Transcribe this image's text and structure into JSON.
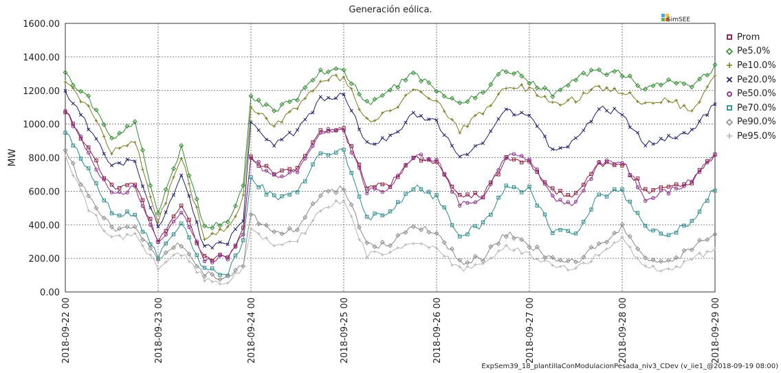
{
  "title": "Generación eólica.",
  "footer": "ExpSem39_18_plantillaConModulacionPesada_niv3_CDev (v_iie1_@2018-09-19 08:00)",
  "logo_text": "SimSEE",
  "chart_data": {
    "type": "line",
    "title": "Generación eólica.",
    "xlabel": "",
    "ylabel": "MW",
    "ylim": [
      0,
      1600
    ],
    "yticks": [
      "0.00",
      "200.00",
      "400.00",
      "600.00",
      "800.00",
      "1000.00",
      "1200.00",
      "1400.00",
      "1600.00"
    ],
    "xticks": [
      "2018-09-22 00",
      "2018-09-23 00",
      "2018-09-24 00",
      "2018-09-25 00",
      "2018-09-26 00",
      "2018-09-27 00",
      "2018-09-28 00",
      "2018-09-29 00"
    ],
    "x_range_hours": [
      0,
      168
    ],
    "grid": true,
    "legend_position": "right",
    "series": [
      {
        "name": "Prom",
        "color": "#8B1A3A",
        "marker": "square",
        "points": [
          [
            0,
            1090
          ],
          [
            6,
            850
          ],
          [
            12,
            620
          ],
          [
            18,
            650
          ],
          [
            24,
            300
          ],
          [
            30,
            520
          ],
          [
            36,
            200
          ],
          [
            42,
            210
          ],
          [
            46,
            380
          ],
          [
            48,
            800
          ],
          [
            54,
            700
          ],
          [
            60,
            730
          ],
          [
            66,
            950
          ],
          [
            72,
            960
          ],
          [
            78,
            630
          ],
          [
            84,
            640
          ],
          [
            90,
            800
          ],
          [
            96,
            780
          ],
          [
            102,
            560
          ],
          [
            108,
            580
          ],
          [
            114,
            790
          ],
          [
            120,
            780
          ],
          [
            126,
            600
          ],
          [
            132,
            570
          ],
          [
            138,
            760
          ],
          [
            144,
            770
          ],
          [
            150,
            600
          ],
          [
            156,
            610
          ],
          [
            162,
            660
          ],
          [
            168,
            820
          ]
        ]
      },
      {
        "name": "Pe5.0%",
        "color": "#2E8B2E",
        "marker": "diamond",
        "points": [
          [
            0,
            1290
          ],
          [
            6,
            1150
          ],
          [
            12,
            920
          ],
          [
            18,
            1000
          ],
          [
            24,
            480
          ],
          [
            30,
            860
          ],
          [
            36,
            380
          ],
          [
            42,
            420
          ],
          [
            46,
            620
          ],
          [
            48,
            1150
          ],
          [
            54,
            1080
          ],
          [
            60,
            1160
          ],
          [
            66,
            1310
          ],
          [
            72,
            1320
          ],
          [
            78,
            1120
          ],
          [
            84,
            1200
          ],
          [
            90,
            1300
          ],
          [
            96,
            1200
          ],
          [
            102,
            1120
          ],
          [
            108,
            1190
          ],
          [
            114,
            1330
          ],
          [
            120,
            1260
          ],
          [
            126,
            1180
          ],
          [
            132,
            1270
          ],
          [
            138,
            1320
          ],
          [
            144,
            1300
          ],
          [
            150,
            1210
          ],
          [
            156,
            1270
          ],
          [
            162,
            1240
          ],
          [
            168,
            1340
          ]
        ]
      },
      {
        "name": "Pe10.0%",
        "color": "#7A7A1E",
        "marker": "plus",
        "points": [
          [
            0,
            1250
          ],
          [
            6,
            1100
          ],
          [
            12,
            840
          ],
          [
            18,
            900
          ],
          [
            24,
            420
          ],
          [
            30,
            800
          ],
          [
            36,
            330
          ],
          [
            42,
            370
          ],
          [
            46,
            560
          ],
          [
            48,
            1100
          ],
          [
            54,
            990
          ],
          [
            60,
            1100
          ],
          [
            66,
            1260
          ],
          [
            72,
            1280
          ],
          [
            78,
            1020
          ],
          [
            84,
            1080
          ],
          [
            90,
            1200
          ],
          [
            96,
            1150
          ],
          [
            102,
            960
          ],
          [
            108,
            1070
          ],
          [
            114,
            1230
          ],
          [
            120,
            1210
          ],
          [
            126,
            1120
          ],
          [
            132,
            1150
          ],
          [
            138,
            1220
          ],
          [
            144,
            1200
          ],
          [
            150,
            1120
          ],
          [
            156,
            1150
          ],
          [
            162,
            1070
          ],
          [
            168,
            1280
          ]
        ]
      },
      {
        "name": "Pe20.0%",
        "color": "#1E1E6A",
        "marker": "x",
        "points": [
          [
            0,
            1200
          ],
          [
            6,
            980
          ],
          [
            12,
            750
          ],
          [
            18,
            780
          ],
          [
            24,
            380
          ],
          [
            30,
            700
          ],
          [
            36,
            260
          ],
          [
            42,
            290
          ],
          [
            46,
            440
          ],
          [
            48,
            1000
          ],
          [
            54,
            880
          ],
          [
            60,
            960
          ],
          [
            66,
            1150
          ],
          [
            72,
            1180
          ],
          [
            78,
            880
          ],
          [
            84,
            920
          ],
          [
            90,
            1060
          ],
          [
            96,
            1020
          ],
          [
            102,
            790
          ],
          [
            108,
            880
          ],
          [
            114,
            1080
          ],
          [
            120,
            1060
          ],
          [
            126,
            850
          ],
          [
            132,
            900
          ],
          [
            138,
            1100
          ],
          [
            144,
            1060
          ],
          [
            150,
            880
          ],
          [
            156,
            920
          ],
          [
            162,
            960
          ],
          [
            168,
            1120
          ]
        ]
      },
      {
        "name": "Pe50.0%",
        "color": "#8B2A8B",
        "marker": "circle",
        "points": [
          [
            0,
            1080
          ],
          [
            6,
            830
          ],
          [
            12,
            580
          ],
          [
            18,
            620
          ],
          [
            24,
            290
          ],
          [
            30,
            490
          ],
          [
            36,
            190
          ],
          [
            42,
            200
          ],
          [
            46,
            360
          ],
          [
            48,
            790
          ],
          [
            54,
            690
          ],
          [
            60,
            720
          ],
          [
            66,
            960
          ],
          [
            72,
            970
          ],
          [
            78,
            600
          ],
          [
            84,
            620
          ],
          [
            90,
            810
          ],
          [
            96,
            790
          ],
          [
            102,
            520
          ],
          [
            108,
            560
          ],
          [
            114,
            810
          ],
          [
            120,
            790
          ],
          [
            126,
            560
          ],
          [
            132,
            520
          ],
          [
            138,
            770
          ],
          [
            144,
            780
          ],
          [
            150,
            560
          ],
          [
            156,
            600
          ],
          [
            162,
            660
          ],
          [
            168,
            840
          ]
        ]
      },
      {
        "name": "Pe70.0%",
        "color": "#2A8A8A",
        "marker": "square",
        "points": [
          [
            0,
            960
          ],
          [
            6,
            720
          ],
          [
            12,
            480
          ],
          [
            18,
            460
          ],
          [
            24,
            210
          ],
          [
            30,
            420
          ],
          [
            36,
            130
          ],
          [
            42,
            110
          ],
          [
            46,
            290
          ],
          [
            48,
            680
          ],
          [
            54,
            560
          ],
          [
            60,
            590
          ],
          [
            66,
            830
          ],
          [
            72,
            840
          ],
          [
            78,
            440
          ],
          [
            84,
            470
          ],
          [
            90,
            630
          ],
          [
            96,
            560
          ],
          [
            102,
            340
          ],
          [
            108,
            400
          ],
          [
            114,
            620
          ],
          [
            120,
            610
          ],
          [
            126,
            370
          ],
          [
            132,
            350
          ],
          [
            138,
            580
          ],
          [
            144,
            600
          ],
          [
            150,
            380
          ],
          [
            156,
            340
          ],
          [
            162,
            420
          ],
          [
            168,
            620
          ]
        ]
      },
      {
        "name": "Pe90.0%",
        "color": "#8A8A8A",
        "marker": "diamond",
        "points": [
          [
            0,
            850
          ],
          [
            6,
            560
          ],
          [
            12,
            380
          ],
          [
            18,
            380
          ],
          [
            24,
            190
          ],
          [
            30,
            290
          ],
          [
            36,
            110
          ],
          [
            42,
            80
          ],
          [
            46,
            170
          ],
          [
            48,
            460
          ],
          [
            54,
            340
          ],
          [
            60,
            370
          ],
          [
            66,
            580
          ],
          [
            72,
            620
          ],
          [
            78,
            280
          ],
          [
            84,
            280
          ],
          [
            90,
            400
          ],
          [
            96,
            350
          ],
          [
            102,
            180
          ],
          [
            108,
            200
          ],
          [
            114,
            350
          ],
          [
            120,
            280
          ],
          [
            126,
            190
          ],
          [
            132,
            180
          ],
          [
            138,
            280
          ],
          [
            144,
            390
          ],
          [
            150,
            200
          ],
          [
            156,
            170
          ],
          [
            162,
            260
          ],
          [
            168,
            350
          ]
        ]
      },
      {
        "name": "Pe95.0%",
        "color": "#B4B4B4",
        "marker": "plus",
        "points": [
          [
            0,
            800
          ],
          [
            6,
            500
          ],
          [
            12,
            320
          ],
          [
            18,
            330
          ],
          [
            24,
            150
          ],
          [
            30,
            230
          ],
          [
            36,
            80
          ],
          [
            42,
            60
          ],
          [
            46,
            140
          ],
          [
            48,
            380
          ],
          [
            54,
            280
          ],
          [
            60,
            300
          ],
          [
            66,
            500
          ],
          [
            72,
            540
          ],
          [
            78,
            220
          ],
          [
            84,
            220
          ],
          [
            90,
            300
          ],
          [
            96,
            270
          ],
          [
            102,
            130
          ],
          [
            108,
            150
          ],
          [
            114,
            270
          ],
          [
            120,
            220
          ],
          [
            126,
            150
          ],
          [
            132,
            150
          ],
          [
            138,
            220
          ],
          [
            144,
            320
          ],
          [
            150,
            150
          ],
          [
            156,
            120
          ],
          [
            162,
            200
          ],
          [
            168,
            240
          ]
        ]
      }
    ]
  }
}
